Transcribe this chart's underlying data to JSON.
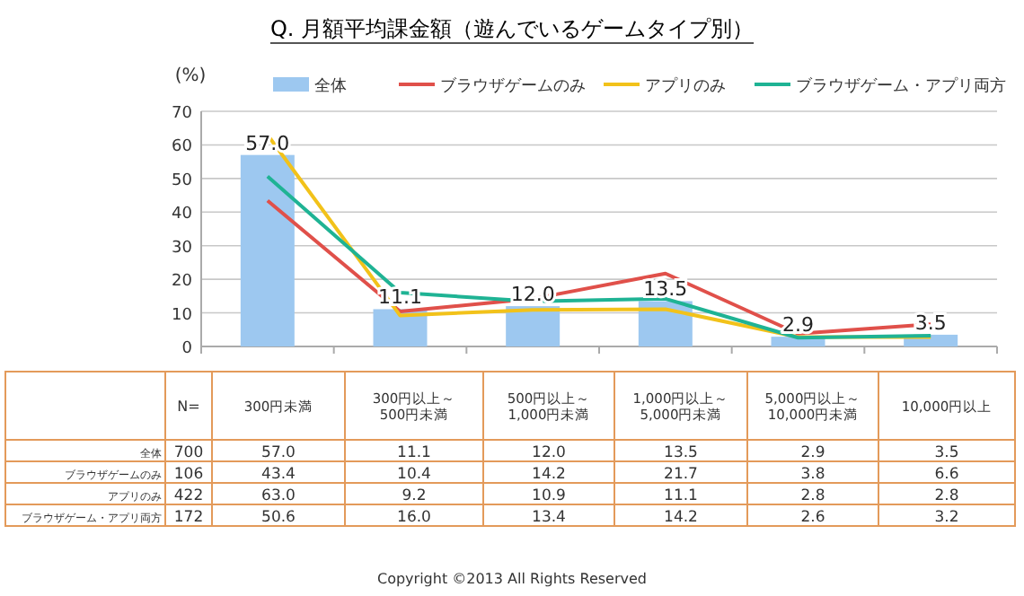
{
  "chart_data": {
    "type": "bar",
    "title": "Q. 月額平均課金額（遊んでいるゲームタイプ別）",
    "ylabel": "(%)",
    "categories": [
      "300円未満",
      "300円以上～\n500円未満",
      "500円以上～\n1,000円未満",
      "1,000円以上～\n5,000円未満",
      "5,000円以上～\n10,000円未満",
      "10,000円以上"
    ],
    "series": [
      {
        "name": "全体",
        "color": "#9dc8f0",
        "values": [
          57.0,
          11.1,
          12.0,
          13.5,
          2.9,
          3.5
        ],
        "value_labels": [
          "57.0",
          "11.1",
          "12.0",
          "13.5",
          "2.9",
          "3.5"
        ]
      },
      {
        "name": "ブラウザゲームのみ",
        "type": "line",
        "color": "#e0504a",
        "values": [
          43.4,
          10.4,
          14.2,
          21.7,
          3.8,
          6.6
        ],
        "value_labels": [
          "43.4",
          "10.4",
          "14.2",
          "21.7",
          "3.8",
          "6.6"
        ]
      },
      {
        "name": "アプリのみ",
        "type": "line",
        "color": "#f2c21a",
        "values": [
          63.0,
          9.2,
          10.9,
          11.1,
          2.8,
          2.8
        ],
        "value_labels": [
          "63.0",
          "9.2",
          "10.9",
          "11.1",
          "2.8",
          "2.8"
        ]
      },
      {
        "name": "ブラウザゲーム・アプリ両方",
        "type": "line",
        "color": "#1fb394",
        "values": [
          50.6,
          16.0,
          13.4,
          14.2,
          2.6,
          3.2
        ],
        "value_labels": [
          "50.6",
          "16.0",
          "13.4",
          "14.2",
          "2.6",
          "3.2"
        ]
      }
    ],
    "ylim": [
      0,
      70
    ],
    "yticks": [
      0,
      10,
      20,
      30,
      40,
      50,
      60,
      70
    ],
    "grid": "y",
    "legend": "top",
    "data_labels": true,
    "annotations": [
      "N=",
      "700",
      "106",
      "422",
      "172",
      "Copyright ©2013 All Rights Reserved"
    ]
  }
}
